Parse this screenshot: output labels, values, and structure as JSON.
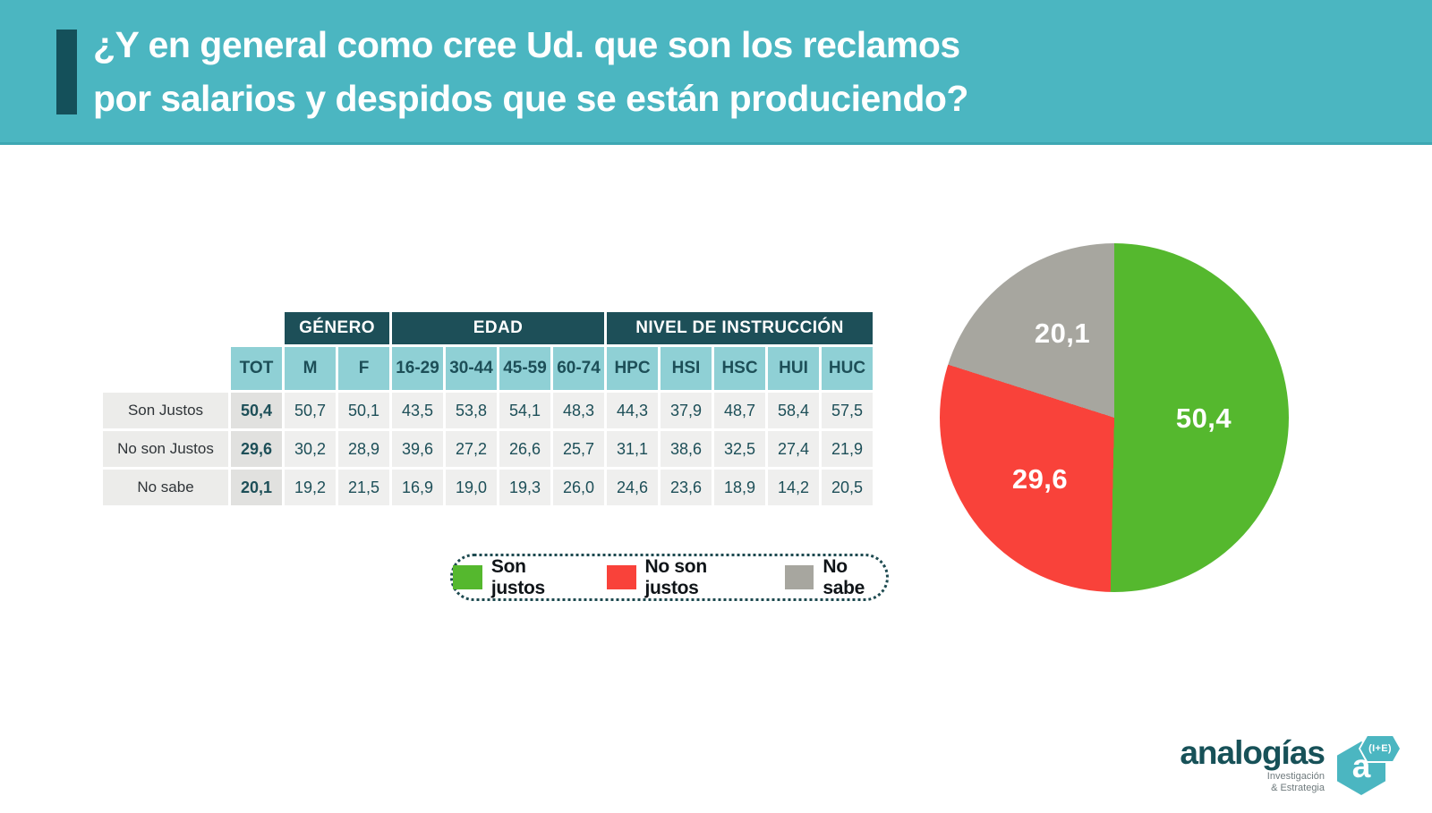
{
  "theme": {
    "header_background": "#4bb6c1",
    "accent_bar_color": "#14505a",
    "group_header_background": "#1d4f58",
    "column_header_background": "#8fd0d5",
    "cell_background": "#efefee",
    "tot_column_background": "#e1e1df",
    "row_label_background": "#ececea",
    "green": "#55b82e",
    "red": "#f9423a",
    "gray": "#a7a69f"
  },
  "header": {
    "title_line1": "¿Y en general como cree Ud. que son los reclamos",
    "title_line2": "por salarios y despidos que se están produciendo?"
  },
  "legend": {
    "items": [
      {
        "label": "Son justos",
        "color": "#55b82e"
      },
      {
        "label": "No son justos",
        "color": "#f9423a"
      },
      {
        "label": "No sabe",
        "color": "#a7a69f"
      }
    ]
  },
  "chart_data": [
    {
      "type": "pie",
      "labels": [
        "Son justos",
        "No son justos",
        "No sabe"
      ],
      "values": [
        50.4,
        29.6,
        20.1
      ],
      "display_values": [
        "50,4",
        "29,6",
        "20,1"
      ],
      "colors": [
        "#55b82e",
        "#f9423a",
        "#a7a69f"
      ],
      "start_angle_deg": 0,
      "direction": "clockwise",
      "label_color": "#ffffff"
    },
    {
      "type": "table",
      "groups": [
        {
          "label": "GÉNERO",
          "span": 2
        },
        {
          "label": "EDAD",
          "span": 4
        },
        {
          "label": "NIVEL DE INSTRUCCIÓN",
          "span": 5
        }
      ],
      "columns": [
        "TOT",
        "M",
        "F",
        "16-29",
        "30-44",
        "45-59",
        "60-74",
        "HPC",
        "HSI",
        "HSC",
        "HUI",
        "HUC"
      ],
      "rows": [
        {
          "label": "Son Justos",
          "values": [
            "50,4",
            "50,7",
            "50,1",
            "43,5",
            "53,8",
            "54,1",
            "48,3",
            "44,3",
            "37,9",
            "48,7",
            "58,4",
            "57,5"
          ]
        },
        {
          "label": "No son Justos",
          "values": [
            "29,6",
            "30,2",
            "28,9",
            "39,6",
            "27,2",
            "26,6",
            "25,7",
            "31,1",
            "38,6",
            "32,5",
            "27,4",
            "21,9"
          ]
        },
        {
          "label": "No sabe",
          "values": [
            "20,1",
            "19,2",
            "21,5",
            "16,9",
            "19,0",
            "19,3",
            "26,0",
            "24,6",
            "23,6",
            "18,9",
            "14,2",
            "20,5"
          ]
        }
      ]
    }
  ],
  "footer_logo": {
    "name": "analogías",
    "tagline_line1": "Investigación",
    "tagline_line2": "& Estrategia",
    "mark_letter": "a",
    "mark_badge": "(I+E)"
  }
}
